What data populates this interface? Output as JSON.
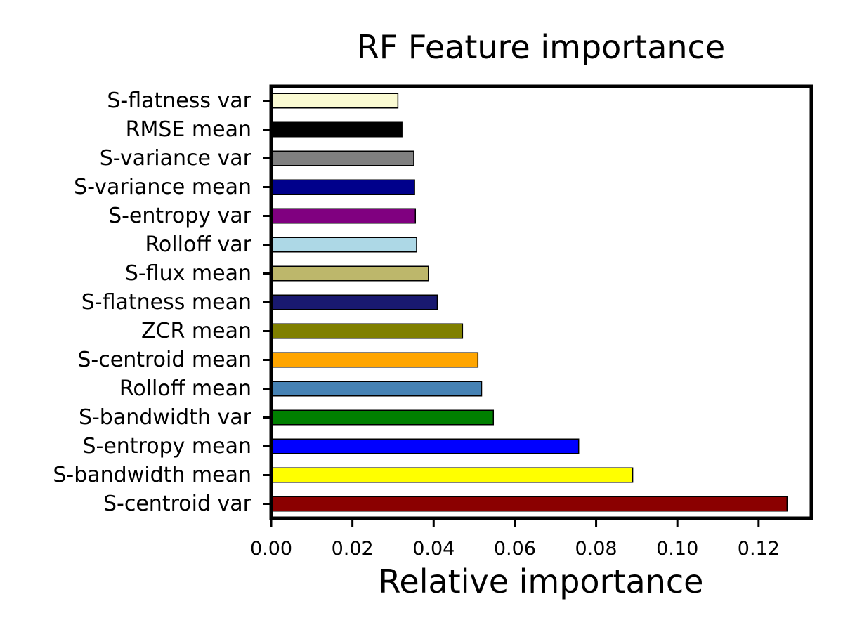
{
  "chart_data": {
    "type": "bar",
    "orientation": "horizontal",
    "title": "RF Feature importance",
    "xlabel": "Relative importance",
    "ylabel": "",
    "xlim": [
      0,
      0.133
    ],
    "xticks": [
      "0.00",
      "0.02",
      "0.04",
      "0.06",
      "0.08",
      "0.10",
      "0.12"
    ],
    "grid": false,
    "categories": [
      "S-centroid var",
      "S-bandwidth mean",
      "S-entropy mean",
      "S-bandwidth var",
      "Rolloff mean",
      "S-centroid mean",
      "ZCR mean",
      "S-flatness mean",
      "S-flux mean",
      "Rolloff var",
      "S-entropy var",
      "S-variance mean",
      "S-variance var",
      "RMSE mean",
      "S-flatness var"
    ],
    "values": [
      0.127,
      0.089,
      0.0757,
      0.0547,
      0.0518,
      0.0509,
      0.0471,
      0.0409,
      0.0387,
      0.0358,
      0.0355,
      0.0353,
      0.0351,
      0.0322,
      0.0312
    ],
    "colors": [
      "#8b0000",
      "#ffff00",
      "#0000ff",
      "#008000",
      "#4682b4",
      "#ffa500",
      "#808000",
      "#191970",
      "#bdb76b",
      "#add8e6",
      "#800080",
      "#00008b",
      "#808080",
      "#000000",
      "#fafad2"
    ]
  }
}
